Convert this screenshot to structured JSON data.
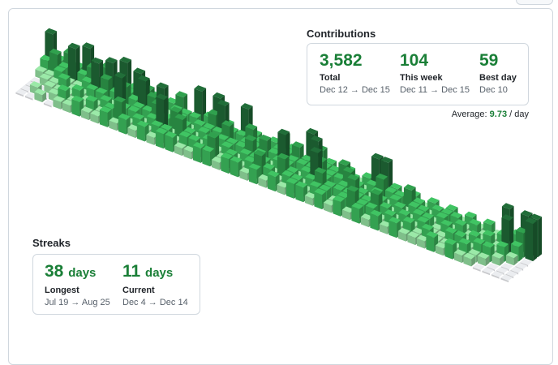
{
  "contributions": {
    "title": "Contributions",
    "stats": [
      {
        "value": "3,582",
        "label": "Total",
        "range": "Dec 12 → Dec 15"
      },
      {
        "value": "104",
        "label": "This week",
        "range": "Dec 11 → Dec 15"
      },
      {
        "value": "59",
        "label": "Best day",
        "range": "Dec 10"
      }
    ],
    "average_label": "Average:",
    "average": "9.73",
    "average_unit": "/ day"
  },
  "streaks": {
    "title": "Streaks",
    "stats": [
      {
        "value": "38",
        "unit": "days",
        "label": "Longest",
        "range": "Jul 19 → Aug 25"
      },
      {
        "value": "11",
        "unit": "days",
        "label": "Current",
        "range": "Dec 4 → Dec 14"
      }
    ]
  },
  "calendar": {
    "colors": [
      "#ebedf0",
      "#9be9a8",
      "#40c463",
      "#30a14e",
      "#216e39"
    ],
    "levels": [
      [
        4,
        2,
        1,
        0,
        0,
        0,
        0
      ],
      [
        2,
        3,
        1,
        1,
        0,
        1,
        0
      ],
      [
        3,
        2,
        2,
        1,
        1,
        0,
        1
      ],
      [
        2,
        4,
        1,
        2,
        1,
        1,
        0
      ],
      [
        4,
        2,
        1,
        1,
        1,
        2,
        1
      ],
      [
        1,
        3,
        2,
        1,
        2,
        1,
        1
      ],
      [
        3,
        2,
        4,
        2,
        1,
        1,
        2
      ],
      [
        2,
        4,
        3,
        2,
        1,
        2,
        1
      ],
      [
        4,
        3,
        2,
        1,
        2,
        1,
        1
      ],
      [
        2,
        2,
        3,
        4,
        1,
        2,
        2
      ],
      [
        3,
        4,
        2,
        1,
        2,
        3,
        1
      ],
      [
        2,
        3,
        4,
        2,
        2,
        1,
        2
      ],
      [
        1,
        2,
        3,
        2,
        1,
        2,
        1
      ],
      [
        2,
        1,
        4,
        3,
        2,
        1,
        2
      ],
      [
        3,
        2,
        1,
        2,
        4,
        2,
        1
      ],
      [
        1,
        2,
        2,
        3,
        1,
        2,
        2
      ],
      [
        4,
        2,
        1,
        2,
        3,
        1,
        2
      ],
      [
        2,
        1,
        2,
        1,
        2,
        2,
        1
      ],
      [
        4,
        3,
        2,
        2,
        1,
        2,
        1
      ],
      [
        2,
        4,
        2,
        1,
        2,
        1,
        2
      ],
      [
        1,
        2,
        3,
        2,
        1,
        3,
        2
      ],
      [
        4,
        2,
        1,
        2,
        2,
        1,
        1
      ],
      [
        2,
        3,
        2,
        2,
        1,
        2,
        2
      ],
      [
        1,
        2,
        2,
        3,
        2,
        1,
        2
      ],
      [
        2,
        1,
        3,
        2,
        2,
        2,
        1
      ],
      [
        3,
        2,
        2,
        1,
        2,
        3,
        2
      ],
      [
        2,
        2,
        4,
        2,
        1,
        2,
        1
      ],
      [
        1,
        3,
        2,
        2,
        3,
        1,
        2
      ],
      [
        4,
        2,
        2,
        1,
        2,
        2,
        1
      ],
      [
        3,
        4,
        2,
        2,
        1,
        2,
        2
      ],
      [
        2,
        2,
        3,
        4,
        2,
        1,
        2
      ],
      [
        1,
        2,
        2,
        2,
        3,
        2,
        1
      ],
      [
        2,
        3,
        2,
        1,
        2,
        2,
        2
      ],
      [
        1,
        2,
        3,
        2,
        2,
        1,
        1
      ],
      [
        2,
        1,
        2,
        3,
        2,
        2,
        2
      ],
      [
        4,
        2,
        1,
        2,
        2,
        3,
        1
      ],
      [
        4,
        3,
        2,
        1,
        2,
        2,
        2
      ],
      [
        2,
        2,
        1,
        2,
        3,
        2,
        1
      ],
      [
        1,
        2,
        2,
        1,
        2,
        1,
        2
      ],
      [
        2,
        3,
        1,
        2,
        1,
        2,
        1
      ],
      [
        1,
        2,
        2,
        1,
        2,
        1,
        2
      ],
      [
        2,
        1,
        2,
        2,
        1,
        2,
        1
      ],
      [
        1,
        2,
        1,
        2,
        2,
        1,
        1
      ],
      [
        2,
        2,
        2,
        1,
        1,
        2,
        1
      ],
      [
        1,
        2,
        1,
        2,
        1,
        1,
        2
      ],
      [
        2,
        1,
        2,
        1,
        2,
        1,
        1
      ],
      [
        1,
        2,
        1,
        1,
        2,
        1,
        2
      ],
      [
        2,
        1,
        1,
        2,
        1,
        2,
        1
      ],
      [
        1,
        1,
        2,
        1,
        2,
        1,
        1
      ],
      [
        4,
        2,
        1,
        1,
        2,
        1,
        0
      ],
      [
        2,
        1,
        4,
        2,
        1,
        0,
        0
      ],
      [
        4,
        3,
        2,
        1,
        0,
        0,
        0
      ],
      [
        4,
        4,
        0,
        0,
        0,
        0,
        0
      ]
    ]
  }
}
